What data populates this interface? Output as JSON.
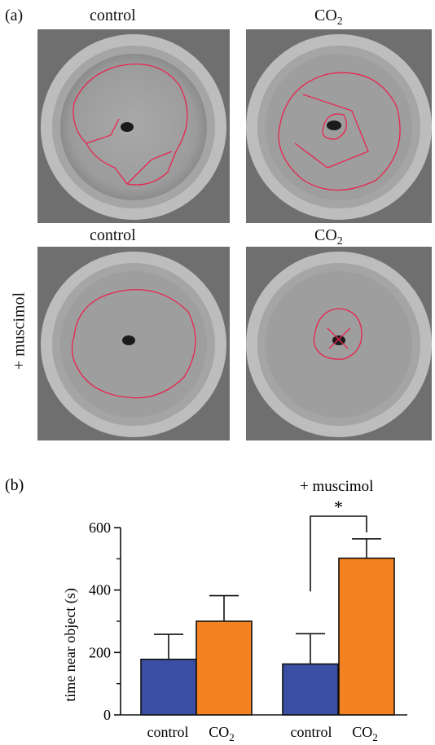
{
  "panel_a": {
    "label": "(a)",
    "columns": [
      "control",
      "CO",
      "2"
    ],
    "row_label": "+ muscimol",
    "images": [
      {
        "name": "tank-control",
        "track_color": "#e8254f"
      },
      {
        "name": "tank-co2",
        "track_color": "#e8254f"
      },
      {
        "name": "tank-muscimol-control",
        "track_color": "#e8254f"
      },
      {
        "name": "tank-muscimol-co2",
        "track_color": "#e8254f"
      }
    ]
  },
  "chart_data": {
    "type": "bar",
    "panel_label": "(b)",
    "ylabel": "time near object (s)",
    "ylim": [
      0,
      600
    ],
    "yticks": [
      0,
      200,
      400,
      600
    ],
    "group_label": "+ muscimol",
    "significance": "*",
    "category_labels": {
      "control": "control",
      "co2_main": "CO",
      "co2_sub": "2"
    },
    "bars": [
      {
        "group": 1,
        "category": "control",
        "value": 178,
        "error": 80,
        "color": "#3a4fa3"
      },
      {
        "group": 1,
        "category": "CO2",
        "value": 300,
        "error": 82,
        "color": "#f58220"
      },
      {
        "group": 2,
        "category": "control",
        "value": 163,
        "error": 97,
        "color": "#3a4fa3"
      },
      {
        "group": 2,
        "category": "CO2",
        "value": 502,
        "error": 62,
        "color": "#f58220"
      }
    ],
    "grid": false,
    "legend": "none"
  }
}
